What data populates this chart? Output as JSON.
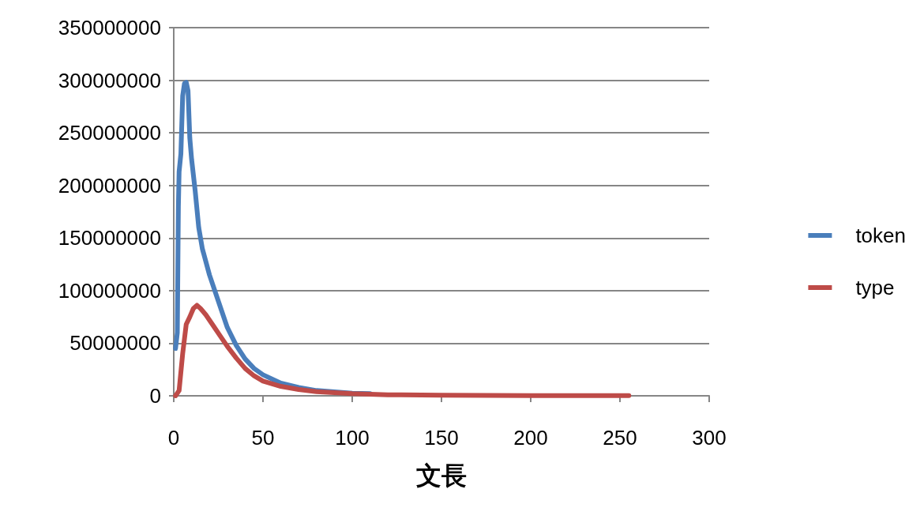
{
  "chart_data": {
    "type": "line",
    "xlabel": "文長",
    "xlim": [
      0,
      300
    ],
    "xticks": [
      0,
      50,
      100,
      150,
      200,
      250,
      300
    ],
    "ylim": [
      0,
      350000000
    ],
    "yticks": [
      0,
      50000000,
      100000000,
      150000000,
      200000000,
      250000000,
      300000000,
      350000000
    ],
    "grid": "y",
    "legend": "right",
    "marker": "none",
    "line_style": "solid",
    "series": [
      {
        "name": "token",
        "color": "#4a7ebb",
        "x": [
          1,
          2,
          2.6,
          3,
          4,
          5,
          6,
          7,
          8,
          9,
          10,
          12,
          14,
          16,
          20,
          25,
          30,
          35,
          40,
          45,
          50,
          60,
          70,
          80,
          100,
          110
        ],
        "values": [
          45000000,
          60000000,
          180000000,
          213000000,
          230000000,
          285000000,
          297000000,
          298000000,
          290000000,
          245000000,
          225000000,
          195000000,
          160000000,
          140000000,
          115000000,
          90000000,
          65000000,
          48000000,
          35000000,
          26000000,
          20000000,
          12000000,
          8000000,
          5000000,
          2500000,
          2000000
        ]
      },
      {
        "name": "type",
        "color": "#be4b48",
        "x": [
          1,
          3,
          5,
          7,
          9,
          11,
          13,
          15,
          18,
          22,
          26,
          30,
          35,
          40,
          45,
          50,
          60,
          70,
          80,
          100,
          120,
          150,
          200,
          255
        ],
        "values": [
          0,
          5000000,
          40000000,
          68000000,
          75000000,
          83000000,
          86000000,
          83000000,
          77000000,
          67000000,
          57000000,
          47000000,
          36000000,
          26000000,
          19000000,
          14000000,
          9000000,
          6000000,
          4000000,
          2000000,
          1000000,
          500000,
          200000,
          100000
        ]
      }
    ]
  }
}
